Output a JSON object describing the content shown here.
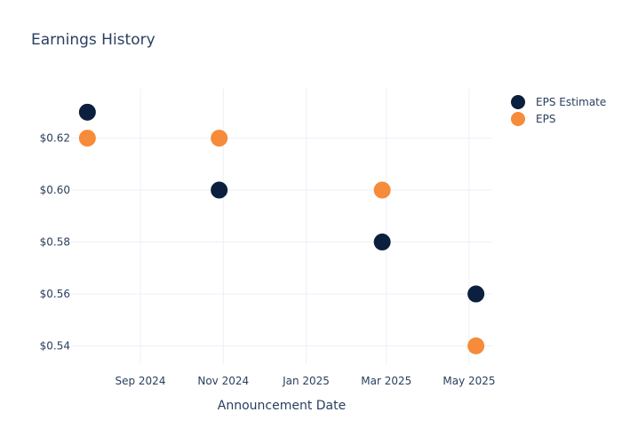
{
  "chart_data": {
    "type": "scatter",
    "title": "Earnings History",
    "xlabel": "Announcement Date",
    "ylabel": "",
    "x_ticks": [
      {
        "date": "2024-09-01",
        "label": "Sep 2024"
      },
      {
        "date": "2024-11-01",
        "label": "Nov 2024"
      },
      {
        "date": "2025-01-01",
        "label": "Jan 2025"
      },
      {
        "date": "2025-03-01",
        "label": "Mar 2025"
      },
      {
        "date": "2025-05-01",
        "label": "May 2025"
      }
    ],
    "y_ticks": [
      {
        "value": 0.54,
        "label": "$0.54"
      },
      {
        "value": 0.56,
        "label": "$0.56"
      },
      {
        "value": 0.58,
        "label": "$0.58"
      },
      {
        "value": 0.6,
        "label": "$0.60"
      },
      {
        "value": 0.62,
        "label": "$0.62"
      }
    ],
    "xlim": [
      "2024-07-12",
      "2025-05-18"
    ],
    "ylim": [
      0.533,
      0.639
    ],
    "grid": true,
    "legend_position": "top-right",
    "series": [
      {
        "name": "EPS Estimate",
        "color": "#0b1f3e",
        "points": [
          {
            "x": "2024-07-24",
            "y": 0.63
          },
          {
            "x": "2024-10-29",
            "y": 0.6
          },
          {
            "x": "2025-02-26",
            "y": 0.58
          },
          {
            "x": "2025-05-06",
            "y": 0.56
          }
        ]
      },
      {
        "name": "EPS",
        "color": "#f68b39",
        "points": [
          {
            "x": "2024-07-24",
            "y": 0.62
          },
          {
            "x": "2024-10-29",
            "y": 0.62
          },
          {
            "x": "2025-02-26",
            "y": 0.6
          },
          {
            "x": "2025-05-06",
            "y": 0.54
          }
        ]
      }
    ]
  }
}
